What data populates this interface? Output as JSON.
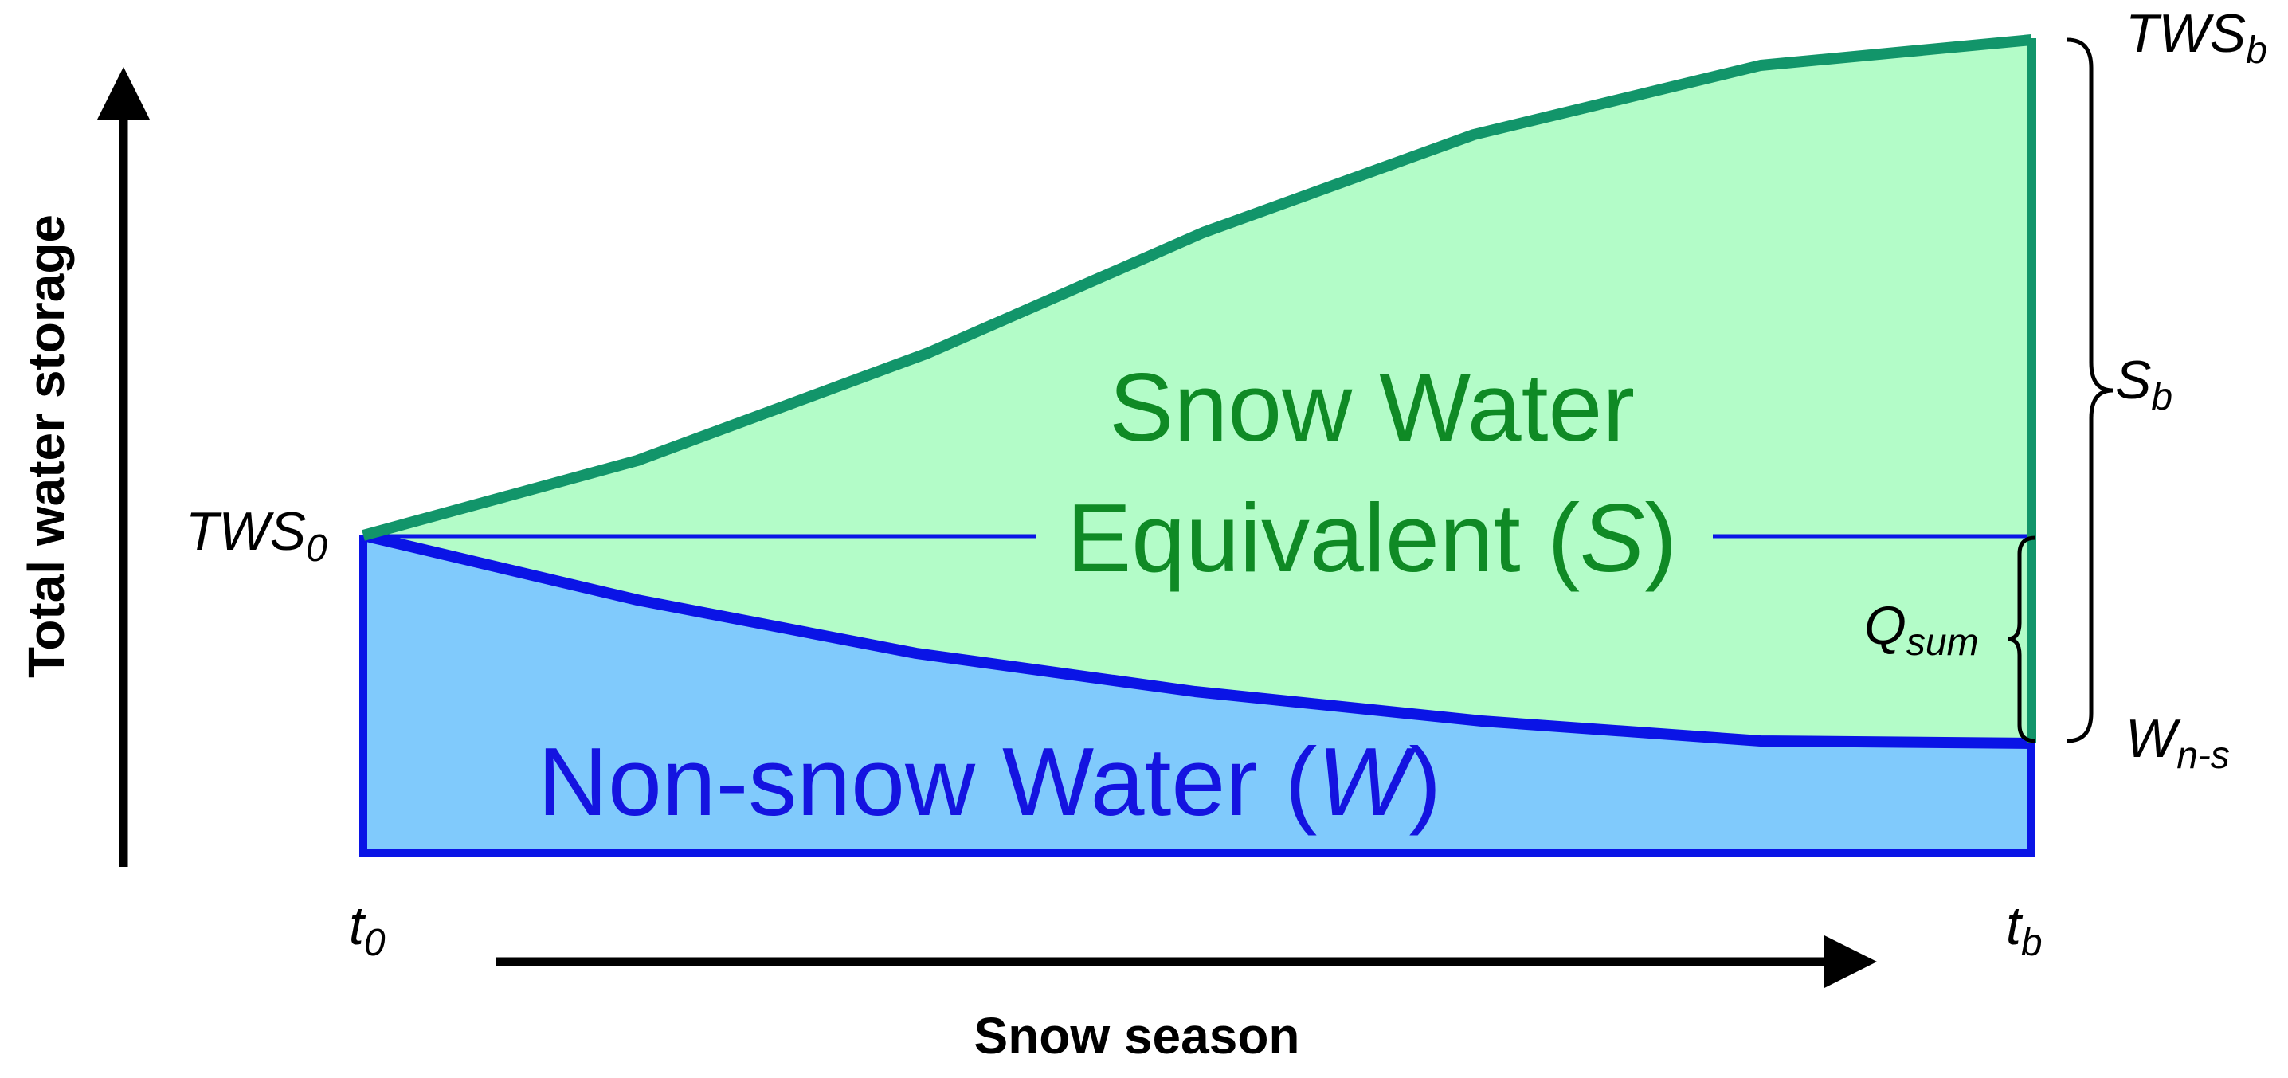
{
  "axes": {
    "y_title": "Total water storage",
    "x_title": "Snow season"
  },
  "regions": {
    "snow": {
      "line1": "Snow Water",
      "line2_prefix": "Equivalent (",
      "line2_symbol": "S",
      "line2_suffix": ")"
    },
    "non_snow": {
      "prefix": "Non-snow Water (",
      "symbol": "W",
      "suffix": ")"
    }
  },
  "labels": {
    "tws0": {
      "base": "TWS",
      "sub": "0"
    },
    "twsb": {
      "base": "TWS",
      "sub": "b"
    },
    "sb": {
      "base": "S",
      "sub": "b"
    },
    "qsum": {
      "base": "Q",
      "sub": "sum"
    },
    "wns": {
      "base": "W",
      "sub": "n-s"
    },
    "t0": {
      "base": "t",
      "sub": "0"
    },
    "tb": {
      "base": "t",
      "sub": "b"
    }
  },
  "colors": {
    "snow_fill": "#b3fcc8",
    "snow_line": "#12956a",
    "snow_text": "#0f8a25",
    "water_fill": "#80cafc",
    "water_line": "#0a14e6",
    "water_text": "#1414e0",
    "axis": "#000000"
  }
}
